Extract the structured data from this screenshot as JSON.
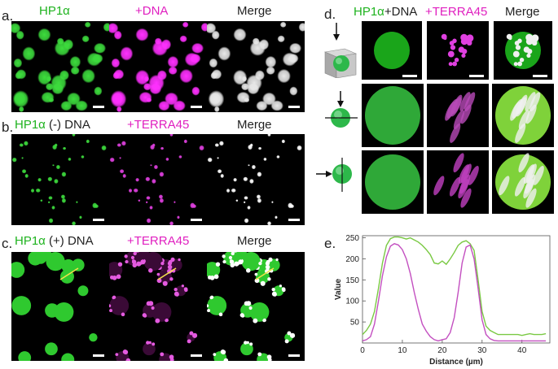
{
  "panel_a": {
    "letter": "a.",
    "labels": [
      "HP1α",
      "+DNA",
      "Merge"
    ]
  },
  "panel_b": {
    "letter": "b.",
    "label_hp1": "HP1α",
    "label_dna": " (-) DNA",
    "label_terra": "+TERRA45",
    "label_merge": "Merge"
  },
  "panel_c": {
    "letter": "c.",
    "label_hp1": "HP1α",
    "label_dna": " (+) DNA",
    "label_terra": "+TERRA45",
    "label_merge": "Merge"
  },
  "panel_d": {
    "letter": "d.",
    "label_hp1": "HP1α",
    "label_dna": "+DNA",
    "label_terra": "+TERRA45",
    "label_merge": "Merge"
  },
  "panel_e": {
    "letter": "e."
  },
  "colors": {
    "green": "#1fb31f",
    "magenta": "#e020c0",
    "line_green": "#7ac943",
    "line_magenta": "#c34fc0"
  },
  "chart_data": {
    "type": "line",
    "xlabel": "Distance (µm)",
    "ylabel": "Value",
    "xlim": [
      0,
      47
    ],
    "ylim": [
      0,
      255
    ],
    "xticks": [
      0,
      10,
      20,
      30,
      40
    ],
    "yticks": [
      50,
      100,
      150,
      200,
      250
    ],
    "series": [
      {
        "color": "#7ac943",
        "x": [
          0,
          1,
          2,
          3,
          4,
          5,
          6,
          7,
          8,
          9,
          10,
          11,
          12,
          13,
          14,
          15,
          16,
          17,
          18,
          19,
          20,
          21,
          22,
          23,
          24,
          25,
          26,
          27,
          28,
          29,
          30,
          31,
          32,
          33,
          34,
          35,
          36,
          37,
          38,
          39,
          40,
          41,
          42,
          43,
          44,
          45,
          46
        ],
        "y": [
          20,
          30,
          45,
          75,
          130,
          190,
          232,
          248,
          252,
          252,
          250,
          247,
          250,
          245,
          240,
          232,
          222,
          210,
          190,
          188,
          195,
          187,
          200,
          215,
          232,
          240,
          243,
          236,
          220,
          150,
          75,
          40,
          30,
          25,
          20,
          20,
          20,
          20,
          20,
          20,
          18,
          20,
          22,
          20,
          20,
          20,
          22
        ]
      },
      {
        "color": "#c34fc0",
        "x": [
          0,
          1,
          2,
          3,
          4,
          5,
          6,
          7,
          8,
          9,
          10,
          11,
          12,
          13,
          14,
          15,
          16,
          17,
          18,
          19,
          20,
          21,
          22,
          23,
          24,
          25,
          26,
          27,
          28,
          29,
          30,
          31,
          32,
          33,
          34,
          35,
          36,
          37,
          38,
          39,
          40,
          41,
          42,
          43,
          44,
          45,
          46
        ],
        "y": [
          5,
          8,
          15,
          45,
          100,
          160,
          205,
          230,
          236,
          233,
          222,
          200,
          165,
          120,
          80,
          45,
          28,
          15,
          8,
          5,
          8,
          10,
          25,
          60,
          120,
          190,
          228,
          233,
          200,
          130,
          55,
          20,
          10,
          6,
          5,
          5,
          5,
          5,
          5,
          5,
          5,
          5,
          5,
          5,
          5,
          5,
          5
        ]
      }
    ]
  }
}
